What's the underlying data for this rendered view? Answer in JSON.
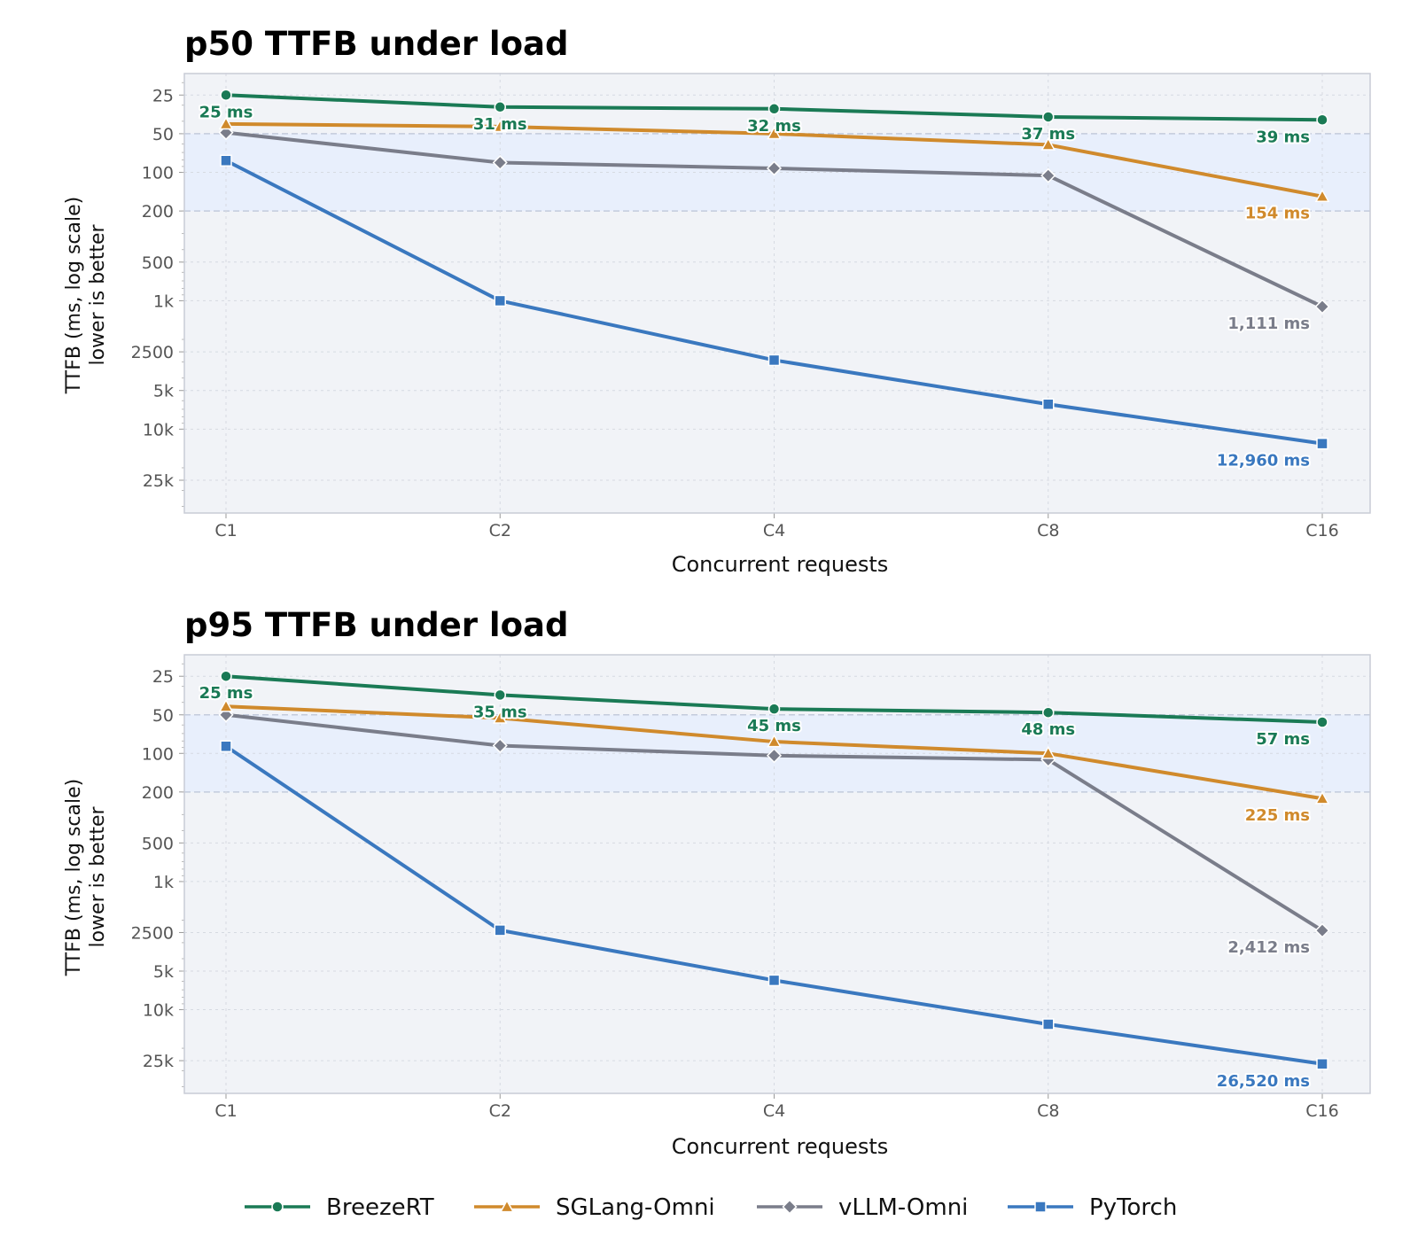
{
  "chart_data": [
    {
      "type": "line",
      "title": "p50 TTFB under load",
      "xlabel": "Concurrent requests",
      "ylabel_line1": "TTFB (ms, log scale)",
      "ylabel_line2": "lower is better",
      "y_scale": "log",
      "y_inverted": true,
      "ylim": [
        17,
        45000
      ],
      "yticks": [
        {
          "value": 25,
          "label": "25"
        },
        {
          "value": 50,
          "label": "50"
        },
        {
          "value": 100,
          "label": "100"
        },
        {
          "value": 200,
          "label": "200"
        },
        {
          "value": 500,
          "label": "500"
        },
        {
          "value": 1000,
          "label": "1k"
        },
        {
          "value": 2500,
          "label": "2500"
        },
        {
          "value": 5000,
          "label": "5k"
        },
        {
          "value": 10000,
          "label": "10k"
        },
        {
          "value": 25000,
          "label": "25k"
        }
      ],
      "highlight_band": [
        50,
        200
      ],
      "grid": true,
      "categories": [
        "C1",
        "C2",
        "C4",
        "C8",
        "C16"
      ],
      "series": [
        {
          "name": "BreezeRT",
          "values": [
            25,
            31,
            32,
            37,
            39
          ],
          "labels": [
            "25 ms",
            "31 ms",
            "32 ms",
            "37 ms",
            "39 ms"
          ]
        },
        {
          "name": "SGLang-Omni",
          "values": [
            42,
            44,
            50,
            61,
            154
          ],
          "labels": [
            "",
            "",
            "",
            "",
            "154 ms"
          ]
        },
        {
          "name": "vLLM-Omni",
          "values": [
            49,
            84,
            93,
            106,
            1111
          ],
          "labels": [
            "",
            "",
            "",
            "",
            "1,111 ms"
          ]
        },
        {
          "name": "PyTorch",
          "values": [
            81,
            1000,
            2900,
            6400,
            12960
          ],
          "labels": [
            "",
            "",
            "",
            "",
            "12,960 ms"
          ]
        }
      ]
    },
    {
      "type": "line",
      "title": "p95 TTFB under load",
      "xlabel": "Concurrent requests",
      "ylabel_line1": "TTFB (ms, log scale)",
      "ylabel_line2": "lower is better",
      "y_scale": "log",
      "y_inverted": true,
      "ylim": [
        17,
        45000
      ],
      "yticks": [
        {
          "value": 25,
          "label": "25"
        },
        {
          "value": 50,
          "label": "50"
        },
        {
          "value": 100,
          "label": "100"
        },
        {
          "value": 200,
          "label": "200"
        },
        {
          "value": 500,
          "label": "500"
        },
        {
          "value": 1000,
          "label": "1k"
        },
        {
          "value": 2500,
          "label": "2500"
        },
        {
          "value": 5000,
          "label": "5k"
        },
        {
          "value": 10000,
          "label": "10k"
        },
        {
          "value": 25000,
          "label": "25k"
        }
      ],
      "highlight_band": [
        50,
        200
      ],
      "grid": true,
      "categories": [
        "C1",
        "C2",
        "C4",
        "C8",
        "C16"
      ],
      "series": [
        {
          "name": "BreezeRT",
          "values": [
            25,
            35,
            45,
            48,
            57
          ],
          "labels": [
            "25 ms",
            "35 ms",
            "45 ms",
            "48 ms",
            "57 ms"
          ]
        },
        {
          "name": "SGLang-Omni",
          "values": [
            43,
            53,
            81,
            100,
            225
          ],
          "labels": [
            "",
            "",
            "",
            "",
            "225 ms"
          ]
        },
        {
          "name": "vLLM-Omni",
          "values": [
            50,
            87,
            104,
            112,
            2412
          ],
          "labels": [
            "",
            "",
            "",
            "",
            "2,412 ms"
          ]
        },
        {
          "name": "PyTorch",
          "values": [
            88,
            2400,
            5900,
            13000,
            26520
          ],
          "labels": [
            "",
            "",
            "",
            "",
            "26,520 ms"
          ]
        }
      ]
    }
  ],
  "legend": {
    "placement": "bottom-center",
    "items": [
      {
        "name": "BreezeRT",
        "color": "#1a7a55",
        "marker": "circle"
      },
      {
        "name": "SGLang-Omni",
        "color": "#d08a2c",
        "marker": "triangle"
      },
      {
        "name": "vLLM-Omni",
        "color": "#7a7d8a",
        "marker": "diamond"
      },
      {
        "name": "PyTorch",
        "color": "#3a78bf",
        "marker": "square"
      }
    ]
  },
  "colors": {
    "plot_background": "#f1f3f7",
    "highlight_band": "#e8effc",
    "grid": "#d6dae2",
    "band_border": "#c3cbdc",
    "axis_text": "#555555"
  }
}
